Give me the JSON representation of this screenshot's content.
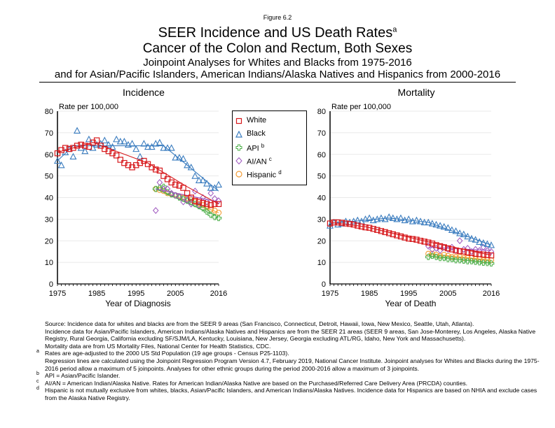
{
  "figure_label": "Figure 6.2",
  "title": {
    "line1": "SEER Incidence and US Death Rates",
    "line1_sup": "a",
    "line2": "Cancer of the Colon and Rectum, Both Sexes",
    "line3": "Joinpoint Analyses for Whites and Blacks from 1975-2016",
    "line4": "and for Asian/Pacific Islanders, American Indians/Alaska Natives and Hispanics from 2000-2016"
  },
  "legend": {
    "items": [
      {
        "label": "White",
        "sup": "",
        "color": "#d7191c",
        "symbol": "square"
      },
      {
        "label": "Black",
        "sup": "",
        "color": "#3a7cbf",
        "symbol": "triangle"
      },
      {
        "label": "API",
        "sup": "b",
        "color": "#4daf4a",
        "symbol": "cross"
      },
      {
        "label": "AI/AN",
        "sup": "c",
        "color": "#9e56bf",
        "symbol": "diamond"
      },
      {
        "label": "Hispanic",
        "sup": "d",
        "color": "#f39c34",
        "symbol": "circle"
      }
    ]
  },
  "chart_data": [
    {
      "type": "scatter",
      "title": "Incidence",
      "ylabel": "Rate per 100,000",
      "xlabel": "Year of Diagnosis",
      "xlim": [
        1975,
        2016
      ],
      "ylim": [
        0,
        80
      ],
      "xticks": [
        "1975",
        "1985",
        "1995",
        "2005",
        "2016"
      ],
      "yticks": [
        "0",
        "10",
        "20",
        "30",
        "40",
        "50",
        "60",
        "70",
        "80"
      ],
      "grid": true,
      "series": [
        {
          "name": "White",
          "start": 1975,
          "values": [
            60.5,
            62,
            63,
            62.5,
            63,
            64,
            64.5,
            64,
            63.5,
            65.5,
            66.5,
            64,
            62.5,
            61.5,
            60.5,
            59.5,
            57.5,
            56,
            55,
            54,
            55,
            56,
            57,
            55.5,
            54,
            53,
            52.5,
            50,
            48.5,
            47,
            46,
            45.5,
            44.5,
            42,
            40,
            38.5,
            38,
            37.5,
            37,
            36.5,
            37,
            37
          ],
          "fit": [
            [
              1975,
              61
            ],
            [
              1984,
              65.5
            ],
            [
              1998,
              56
            ],
            [
              2008,
              45
            ],
            [
              2016,
              37
            ]
          ]
        },
        {
          "name": "Black",
          "start": 1975,
          "values": [
            57,
            55,
            61,
            62.5,
            59,
            71,
            63,
            61.5,
            67,
            63,
            64.5,
            65,
            66.5,
            64.5,
            63.5,
            67,
            66,
            66,
            64.5,
            65,
            62.5,
            59,
            65,
            63.5,
            63.5,
            65,
            65.5,
            63,
            63,
            63,
            58.5,
            58.5,
            58,
            55,
            54,
            50,
            48,
            48,
            46.5,
            44.5,
            44.5,
            46
          ],
          "fit": [
            [
              1975,
              57
            ],
            [
              1979,
              64
            ],
            [
              2002,
              64
            ],
            [
              2016,
              43
            ]
          ]
        },
        {
          "name": "API",
          "start": 2000,
          "values": [
            44,
            44.5,
            45,
            42.5,
            41.5,
            41,
            40,
            39.5,
            38.5,
            38,
            37,
            36,
            35,
            33.5,
            32,
            31,
            30.5
          ],
          "fit": [
            [
              2000,
              44
            ],
            [
              2016,
              31
            ]
          ]
        },
        {
          "name": "AI/AN",
          "start": 2000,
          "values": [
            34,
            47,
            44,
            44,
            42,
            41,
            40.5,
            38,
            39,
            37,
            43,
            36.5,
            40,
            38,
            42,
            39.5,
            38.5
          ],
          "fit": [
            [
              2000,
              44
            ],
            [
              2016,
              38
            ]
          ]
        },
        {
          "name": "Hispanic",
          "start": 2000,
          "values": [
            44,
            43.5,
            43,
            42,
            41.5,
            41,
            40.5,
            40,
            39.5,
            39,
            38,
            37,
            36.5,
            35.5,
            34.5,
            34,
            33
          ],
          "fit": [
            [
              2000,
              44
            ],
            [
              2016,
              33
            ]
          ]
        }
      ]
    },
    {
      "type": "scatter",
      "title": "Mortality",
      "ylabel": "Rate per 100,000",
      "xlabel": "Year of Death",
      "xlim": [
        1975,
        2016
      ],
      "ylim": [
        0,
        80
      ],
      "xticks": [
        "1975",
        "1985",
        "1995",
        "2005",
        "2016"
      ],
      "yticks": [
        "0",
        "10",
        "20",
        "30",
        "40",
        "50",
        "60",
        "70",
        "80"
      ],
      "grid": true,
      "series": [
        {
          "name": "White",
          "start": 1975,
          "values": [
            28,
            28.5,
            28.5,
            28.3,
            28,
            27.8,
            27.5,
            27,
            26.6,
            26.2,
            26,
            25.5,
            25,
            24.5,
            24,
            23.5,
            23,
            22.5,
            22,
            21.5,
            21,
            20.8,
            20.5,
            20,
            19.6,
            19.2,
            18.7,
            18,
            17.5,
            17,
            16.5,
            16,
            15.5,
            15.2,
            15,
            14.6,
            14.3,
            14,
            13.8,
            13.6,
            13.4,
            13.2
          ],
          "fit": [
            [
              1975,
              28.5
            ],
            [
              1984,
              26.5
            ],
            [
              2000,
              19.5
            ],
            [
              2016,
              13.3
            ]
          ]
        },
        {
          "name": "Black",
          "start": 1975,
          "values": [
            27,
            28.5,
            27.5,
            28,
            29,
            28.5,
            29,
            29.5,
            29,
            30,
            30.5,
            29.5,
            30,
            30.5,
            30,
            31,
            30.5,
            30,
            30.5,
            29.5,
            30,
            29,
            29.5,
            29,
            28.5,
            28.5,
            28,
            27.5,
            27,
            26.5,
            26,
            25,
            24.5,
            23.5,
            23,
            22,
            21,
            20.5,
            19.5,
            19,
            18.5,
            18
          ],
          "fit": [
            [
              1975,
              28
            ],
            [
              1990,
              30.5
            ],
            [
              2000,
              28.5
            ],
            [
              2016,
              18
            ]
          ]
        },
        {
          "name": "API",
          "start": 2000,
          "values": [
            12.5,
            13,
            12.5,
            12,
            12,
            11.5,
            11.5,
            11,
            11,
            10.8,
            10.5,
            10.5,
            10.2,
            10,
            9.8,
            9.7,
            9.5
          ],
          "fit": [
            [
              2000,
              13
            ],
            [
              2016,
              9.6
            ]
          ]
        },
        {
          "name": "AI/AN",
          "start": 2000,
          "values": [
            17.5,
            16,
            16.5,
            15.5,
            17,
            16,
            17,
            15.5,
            20,
            16,
            16.5,
            15,
            16,
            15.5,
            17,
            15.5,
            15
          ],
          "fit": [
            [
              2000,
              17
            ],
            [
              2016,
              15.5
            ]
          ]
        },
        {
          "name": "Hispanic",
          "start": 2000,
          "values": [
            14,
            14,
            13.5,
            13,
            13.5,
            13,
            12.5,
            12.5,
            12.5,
            12,
            12,
            12,
            11.5,
            11.5,
            11,
            11,
            11
          ],
          "fit": [
            [
              2000,
              14
            ],
            [
              2016,
              11
            ]
          ]
        }
      ]
    }
  ],
  "footnotes": {
    "source": "Source:  Incidence data for whites and blacks are from the SEER 9 areas (San Francisco, Connecticut, Detroit, Hawaii, Iowa, New Mexico, Seattle, Utah, Atlanta).",
    "source2": "Incidence data for Asian/Pacific Islanders, American Indians/Alaska Natives and Hispanics are from the SEER 21 areas (SEER 9 areas, San Jose-Monterey, Los Angeles, Alaska Native Registry, Rural Georgia, California excluding SF/SJM/LA, Kentucky, Louisiana, New Jersey, Georgia excluding ATL/RG, Idaho, New York and Massachusetts).",
    "source3": "Mortality data are from US Mortality Files, National Center for Health Statistics, CDC.",
    "a_mark": "a",
    "a": "Rates are age-adjusted to the 2000 US Std Population (19 age groups - Census P25-1103).",
    "a2": "Regression lines are calculated using the Joinpoint Regression Program Version 4.7, February 2019, National Cancer Institute.  Joinpoint analyses for Whites and Blacks during the 1975-2016 period allow a maximum of 5 joinpoints. Analyses for other ethnic groups during the period 2000-2016 allow a maximum of 3 joinpoints.",
    "b_mark": "b",
    "b": "API = Asian/Pacific Islander.",
    "c_mark": "c",
    "c": "AI/AN = American Indian/Alaska Native.  Rates for American Indian/Alaska Native are based on the Purchased/Referred Care Delivery Area (PRCDA) counties.",
    "d_mark": "d",
    "d": "Hispanic is not mutually exclusive from whites, blacks, Asian/Pacific Islanders, and American Indians/Alaska Natives.  Incidence data for Hispanics are based on NHIA and exclude cases from the Alaska Native Registry."
  }
}
